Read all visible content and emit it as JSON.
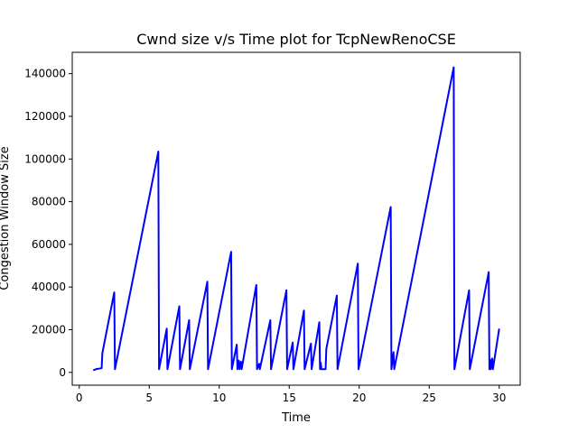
{
  "chart_data": {
    "type": "line",
    "title": "Cwnd size v/s Time plot for TcpNewRenoCSE",
    "xlabel": "Time",
    "ylabel": "Congestion Window Size",
    "xlim": [
      -0.5,
      31.5
    ],
    "ylim": [
      -6000,
      150000
    ],
    "xticks": [
      0,
      5,
      10,
      15,
      20,
      25,
      30
    ],
    "yticks": [
      0,
      20000,
      40000,
      60000,
      80000,
      100000,
      120000,
      140000
    ],
    "grid": false,
    "series": [
      {
        "color": "#0000ff",
        "points": [
          [
            1.0,
            1000
          ],
          [
            1.2,
            1500
          ],
          [
            1.6,
            2000
          ],
          [
            1.65,
            9000
          ],
          [
            2.5,
            37500
          ],
          [
            2.55,
            1500
          ],
          [
            5.65,
            103500
          ],
          [
            5.7,
            1500
          ],
          [
            6.25,
            20500
          ],
          [
            6.3,
            1500
          ],
          [
            7.15,
            31000
          ],
          [
            7.2,
            1500
          ],
          [
            7.85,
            24500
          ],
          [
            7.9,
            1500
          ],
          [
            9.15,
            42500
          ],
          [
            9.2,
            1500
          ],
          [
            10.85,
            56500
          ],
          [
            10.9,
            1500
          ],
          [
            11.25,
            13000
          ],
          [
            11.3,
            1500
          ],
          [
            11.4,
            5500
          ],
          [
            11.45,
            1500
          ],
          [
            11.55,
            5000
          ],
          [
            11.6,
            1500
          ],
          [
            12.65,
            41000
          ],
          [
            12.7,
            1500
          ],
          [
            12.85,
            4000
          ],
          [
            12.9,
            1500
          ],
          [
            13.65,
            24500
          ],
          [
            13.7,
            1500
          ],
          [
            14.8,
            38500
          ],
          [
            14.85,
            1500
          ],
          [
            15.25,
            14000
          ],
          [
            15.3,
            1500
          ],
          [
            16.05,
            29000
          ],
          [
            16.1,
            1500
          ],
          [
            16.55,
            13500
          ],
          [
            16.6,
            1500
          ],
          [
            17.15,
            23500
          ],
          [
            17.2,
            1500
          ],
          [
            17.25,
            4500
          ],
          [
            17.3,
            1500
          ],
          [
            17.6,
            1500
          ],
          [
            17.65,
            11000
          ],
          [
            18.4,
            36000
          ],
          [
            18.45,
            1500
          ],
          [
            19.9,
            51000
          ],
          [
            19.95,
            1500
          ],
          [
            22.25,
            77500
          ],
          [
            22.3,
            1500
          ],
          [
            22.45,
            9500
          ],
          [
            22.5,
            1500
          ],
          [
            26.75,
            143000
          ],
          [
            26.8,
            1500
          ],
          [
            27.85,
            38500
          ],
          [
            27.9,
            1500
          ],
          [
            29.25,
            47000
          ],
          [
            29.3,
            1500
          ],
          [
            29.35,
            6000
          ],
          [
            29.4,
            1500
          ],
          [
            29.5,
            6500
          ],
          [
            29.55,
            1500
          ],
          [
            30.0,
            20500
          ]
        ]
      }
    ]
  }
}
